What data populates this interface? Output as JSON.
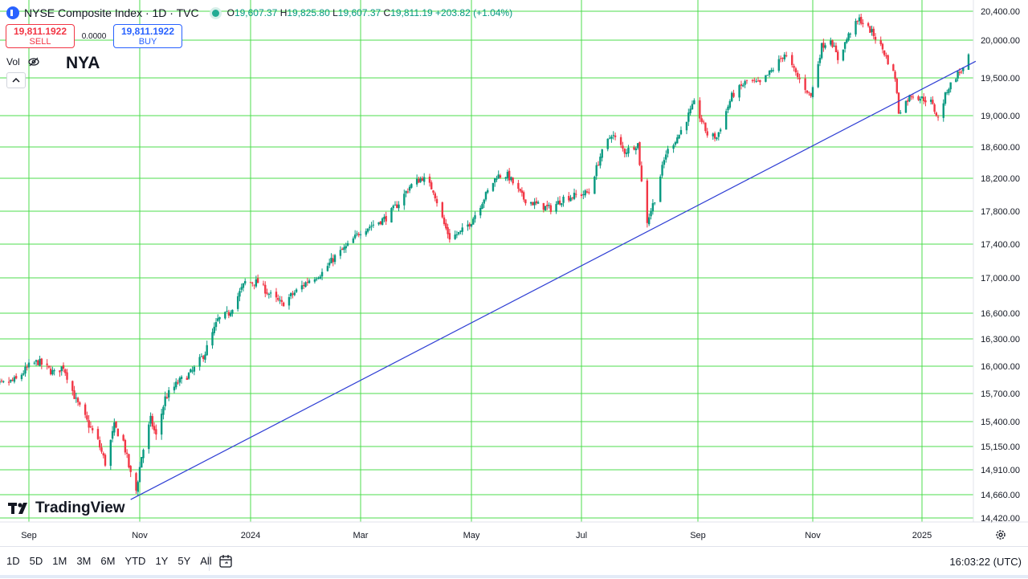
{
  "header": {
    "title": "NYSE Composite Index · 1D · TVC",
    "ohlc": {
      "o_label": "O",
      "o": "19,607.37",
      "h_label": "H",
      "h": "19,825.80",
      "l_label": "L",
      "l": "19,607.37",
      "c_label": "C",
      "c": "19,811.19",
      "change": "+203.82 (+1.04%)"
    }
  },
  "trade": {
    "sell_price": "19,811.1922",
    "sell_label": "SELL",
    "spread": "0.0000",
    "buy_price": "19,811.1922",
    "buy_label": "BUY"
  },
  "indicators": {
    "vol_label": "Vol"
  },
  "symbol": "NYA",
  "brand": "TradingView",
  "toolbar": {
    "ranges": [
      "1D",
      "5D",
      "1M",
      "3M",
      "6M",
      "YTD",
      "1Y",
      "5Y",
      "All"
    ],
    "clock": "16:03:22 (UTC)"
  },
  "colors": {
    "up": "#089981",
    "down": "#f23645",
    "grid": "#4cdc4c",
    "trendline": "#2f3fd4",
    "brand": "#2962ff"
  },
  "icons": [
    "eye-off-icon",
    "chevron-up-icon",
    "calendar-range-icon",
    "settings-icon",
    "tradingview-logo-icon"
  ],
  "chart_data": {
    "type": "candlestick",
    "title": "NYSE Composite Index · 1D · TVC",
    "symbol": "NYA",
    "y_axis": {
      "ticks": [
        14420,
        14660,
        14910,
        15150,
        15400,
        15700,
        16000,
        16300,
        16600,
        17000,
        17400,
        17800,
        18200,
        18600,
        19000,
        19500,
        20000,
        20400
      ],
      "tick_labels": [
        "14,420.00",
        "14,660.00",
        "14,910.00",
        "15,150.00",
        "15,400.00",
        "15,700.00",
        "16,000.00",
        "16,300.00",
        "16,600.00",
        "17,000.00",
        "17,400.00",
        "17,800.00",
        "18,200.00",
        "18,600.00",
        "19,000.00",
        "19,500.00",
        "20,000.00",
        "20,400.00"
      ],
      "range": [
        14420,
        20400
      ]
    },
    "x_axis": {
      "tick_labels": [
        "Sep",
        "Nov",
        "2024",
        "Mar",
        "May",
        "Jul",
        "Sep",
        "Nov",
        "2025"
      ],
      "tick_dates": [
        "2023-09-01",
        "2023-11-01",
        "2024-01-01",
        "2024-03-01",
        "2024-05-01",
        "2024-07-01",
        "2024-09-01",
        "2024-11-01",
        "2025-01-01"
      ],
      "range": [
        "2023-08-08",
        "2025-01-31"
      ]
    },
    "grid": true,
    "series_path": {
      "description_points": [
        [
          "2023-08-08",
          15740
        ],
        [
          "2023-08-25",
          15850
        ],
        [
          "2023-09-01",
          16000
        ],
        [
          "2023-09-06",
          16050
        ],
        [
          "2023-09-15",
          15920
        ],
        [
          "2023-09-20",
          16000
        ],
        [
          "2023-09-27",
          15620
        ],
        [
          "2023-10-03",
          15400
        ],
        [
          "2023-10-09",
          15200
        ],
        [
          "2023-10-13",
          14980
        ],
        [
          "2023-10-18",
          15350
        ],
        [
          "2023-10-23",
          15200
        ],
        [
          "2023-10-27",
          14860
        ],
        [
          "2023-10-30",
          14700
        ],
        [
          "2023-11-02",
          15050
        ],
        [
          "2023-11-07",
          15420
        ],
        [
          "2023-11-10",
          15250
        ],
        [
          "2023-11-15",
          15650
        ],
        [
          "2023-11-22",
          15820
        ],
        [
          "2023-11-30",
          15940
        ],
        [
          "2023-12-07",
          16150
        ],
        [
          "2023-12-14",
          16520
        ],
        [
          "2023-12-20",
          16600
        ],
        [
          "2023-12-29",
          16950
        ],
        [
          "2024-01-05",
          16950
        ],
        [
          "2024-01-12",
          16800
        ],
        [
          "2024-01-18",
          16700
        ],
        [
          "2024-01-26",
          16850
        ],
        [
          "2024-02-02",
          16980
        ],
        [
          "2024-02-09",
          17060
        ],
        [
          "2024-02-16",
          17250
        ],
        [
          "2024-02-23",
          17380
        ],
        [
          "2024-03-01",
          17560
        ],
        [
          "2024-03-08",
          17640
        ],
        [
          "2024-03-15",
          17720
        ],
        [
          "2024-03-22",
          17900
        ],
        [
          "2024-03-28",
          18100
        ],
        [
          "2024-04-04",
          18210
        ],
        [
          "2024-04-10",
          18060
        ],
        [
          "2024-04-16",
          17640
        ],
        [
          "2024-04-19",
          17480
        ],
        [
          "2024-04-25",
          17540
        ],
        [
          "2024-05-01",
          17680
        ],
        [
          "2024-05-08",
          17960
        ],
        [
          "2024-05-15",
          18230
        ],
        [
          "2024-05-21",
          18240
        ],
        [
          "2024-05-30",
          17950
        ],
        [
          "2024-06-06",
          17880
        ],
        [
          "2024-06-14",
          17830
        ],
        [
          "2024-06-21",
          17960
        ],
        [
          "2024-06-28",
          17990
        ],
        [
          "2024-07-05",
          18030
        ],
        [
          "2024-07-11",
          18480
        ],
        [
          "2024-07-17",
          18770
        ],
        [
          "2024-07-24",
          18540
        ],
        [
          "2024-07-31",
          18640
        ],
        [
          "2024-08-02",
          18150
        ],
        [
          "2024-08-05",
          17680
        ],
        [
          "2024-08-09",
          17950
        ],
        [
          "2024-08-15",
          18520
        ],
        [
          "2024-08-22",
          18760
        ],
        [
          "2024-08-30",
          19160
        ],
        [
          "2024-09-06",
          18760
        ],
        [
          "2024-09-11",
          18720
        ],
        [
          "2024-09-19",
          19260
        ],
        [
          "2024-09-27",
          19460
        ],
        [
          "2024-10-04",
          19420
        ],
        [
          "2024-10-11",
          19620
        ],
        [
          "2024-10-17",
          19820
        ],
        [
          "2024-10-24",
          19510
        ],
        [
          "2024-10-31",
          19260
        ],
        [
          "2024-11-06",
          19920
        ],
        [
          "2024-11-11",
          20020
        ],
        [
          "2024-11-15",
          19750
        ],
        [
          "2024-11-22",
          20120
        ],
        [
          "2024-11-27",
          20290
        ],
        [
          "2024-12-04",
          20110
        ],
        [
          "2024-12-10",
          19880
        ],
        [
          "2024-12-17",
          19510
        ],
        [
          "2024-12-19",
          19050
        ],
        [
          "2024-12-26",
          19280
        ],
        [
          "2025-01-02",
          19220
        ],
        [
          "2025-01-06",
          19180
        ],
        [
          "2025-01-10",
          18960
        ],
        [
          "2025-01-15",
          19340
        ],
        [
          "2025-01-21",
          19560
        ],
        [
          "2025-01-24",
          19620
        ],
        [
          "2025-01-27",
          19811.19
        ]
      ]
    },
    "trendline": {
      "from": [
        "2023-10-27",
        14610
      ],
      "to": [
        "2025-01-31",
        19720
      ]
    }
  }
}
